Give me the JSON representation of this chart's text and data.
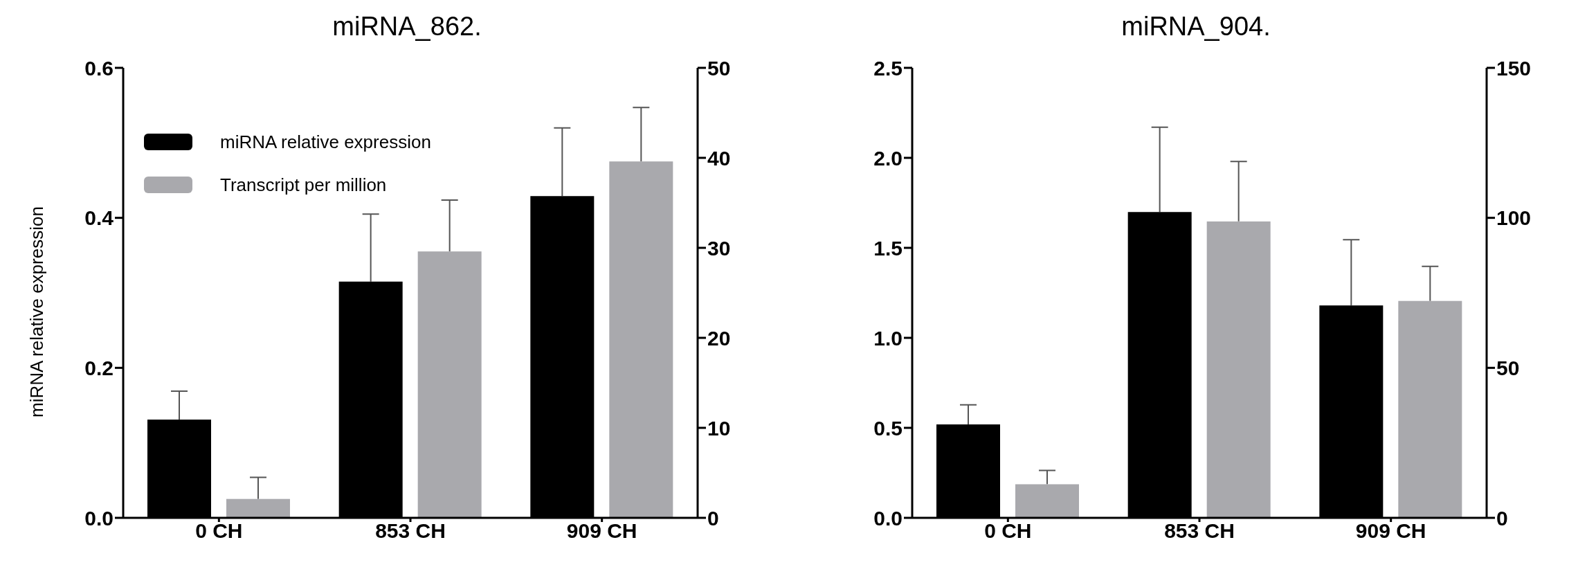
{
  "chart_data": [
    {
      "type": "bar",
      "title": "miRNA_862.",
      "ylabel": "miRNA relative expression",
      "categories": [
        "0 CH",
        "853 CH",
        "909 CH"
      ],
      "series": [
        {
          "name": "miRNA relative expression",
          "color": "#000000",
          "axis": "y",
          "values": [
            0.131,
            0.315,
            0.429
          ],
          "errors": [
            [
              0.131,
              0.169
            ],
            [
              0.315,
              0.405
            ],
            [
              0.429,
              0.52
            ]
          ]
        },
        {
          "name": "Transcript per million",
          "color": "#a9a9ad",
          "axis": "y2",
          "values": [
            2.1,
            29.6,
            39.6
          ],
          "errors": [
            [
              2.1,
              4.5
            ],
            [
              29.6,
              35.3
            ],
            [
              39.6,
              45.6
            ]
          ]
        }
      ],
      "ylim": [
        0,
        0.6
      ],
      "yticks": [
        {
          "value": 0,
          "label": "0.0"
        },
        0.2,
        0.4,
        0.6
      ],
      "y2lim": [
        0,
        50
      ],
      "y2ticks": [
        0,
        10,
        20,
        30,
        40,
        50
      ],
      "legend": "top left",
      "grid": false
    },
    {
      "type": "bar",
      "title": "miRNA_904.",
      "categories": [
        "0 CH",
        "853 CH",
        "909 CH"
      ],
      "series": [
        {
          "color": "#000000",
          "axis": "y",
          "values": [
            0.519,
            1.699,
            1.18
          ],
          "errors": [
            [
              0.519,
              0.628
            ],
            [
              1.699,
              2.17
            ],
            [
              1.18,
              1.545
            ]
          ]
        },
        {
          "color": "#a9a9ad",
          "axis": "y2",
          "values": [
            11.2,
            98.8,
            72.3
          ],
          "errors": [
            [
              11.2,
              15.8
            ],
            [
              98.8,
              118.8
            ],
            [
              72.3,
              83.8
            ]
          ]
        }
      ],
      "ylim": [
        0,
        2.5
      ],
      "yticks": [
        {
          "value": 0,
          "label": "0.0"
        },
        {
          "value": 0.5,
          "label": "0.5"
        },
        {
          "value": 1,
          "label": "1.0"
        },
        {
          "value": 1.5,
          "label": "1.5"
        },
        {
          "value": 2,
          "label": "2.0"
        },
        {
          "value": 2.5,
          "label": "2.5"
        }
      ],
      "y2lim": [
        0,
        150
      ],
      "y2ticks": [
        0,
        50,
        100,
        150
      ],
      "legend": false,
      "grid": false
    }
  ]
}
